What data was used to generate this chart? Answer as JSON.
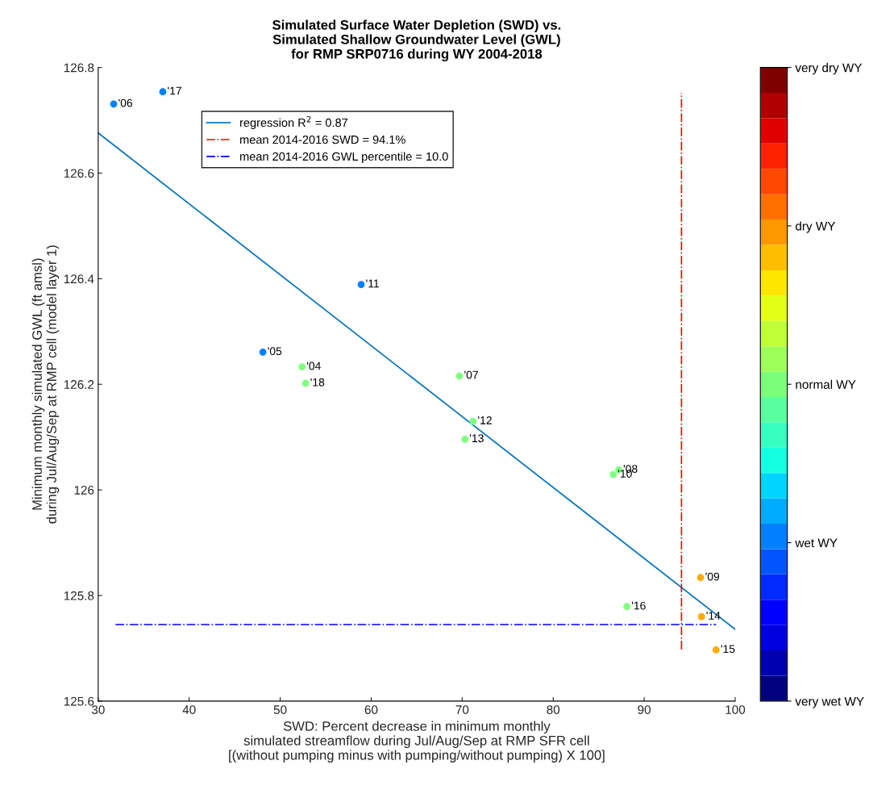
{
  "chart_data": {
    "type": "scatter",
    "title": "Simulated Surface Water Depletion (SWD) vs.\nSimulated Shallow Groundwater Level (GWL)\nfor RMP SRP0716 during WY 2004-2018",
    "xlabel": "SWD: Percent decrease in minimum monthly\nsimulated streamflow during Jul/Aug/Sep at RMP SFR cell\n[(without pumping minus with pumping/without pumping) X 100]",
    "ylabel": "Minimum monthly simulated GWL (ft amsl)\nduring Jul/Aug/Sep at RMP cell (model layer 1)",
    "x": [
      52.4,
      48.1,
      31.7,
      69.7,
      87.2,
      96.2,
      86.6,
      58.9,
      71.2,
      70.3,
      96.3,
      97.9,
      88.1,
      37.1,
      52.8
    ],
    "series": [
      {
        "type": "line",
        "name": "regression R$^{2}$ = 0.87",
        "color": "#0072bd",
        "line_style": "solid",
        "marker": "none",
        "x": [
          30,
          100
        ],
        "values": [
          126.676,
          125.736
        ]
      },
      {
        "type": "line",
        "name": "mean 2014-2016 SWD = 94.1%",
        "color": "#ff0000",
        "line_style": "dashdot",
        "marker": "none",
        "x": [
          94.1,
          94.1
        ],
        "values": [
          125.698,
          126.752
        ]
      },
      {
        "type": "line",
        "name": "mean 2014-2016 GWL percentile = 10.0",
        "color": "#0000ff",
        "line_style": "dashdot",
        "marker": "none",
        "x": [
          31.9,
          97.9
        ],
        "values": [
          125.745,
          125.745
        ]
      },
      {
        "marker": "circle",
        "values": [
          126.233,
          126.261,
          126.731,
          126.216,
          126.038,
          125.834,
          126.029,
          126.389,
          126.13,
          126.096,
          125.76,
          125.697,
          125.779,
          126.754,
          126.202
        ],
        "colors": [
          "#80ff80",
          "#0080ff",
          "#0080ff",
          "#80ff80",
          "#80ff80",
          "#ffaa00",
          "#80ff80",
          "#0080ff",
          "#80ff80",
          "#80ff80",
          "#ffaa00",
          "#ffaa00",
          "#80ff80",
          "#0080ff",
          "#80ff80"
        ]
      }
    ],
    "annotations": [
      {
        "text": "'04",
        "x": 52.4,
        "y": 126.233
      },
      {
        "text": "'05",
        "x": 48.1,
        "y": 126.261
      },
      {
        "text": "'06",
        "x": 31.7,
        "y": 126.731
      },
      {
        "text": "'07",
        "x": 69.7,
        "y": 126.216
      },
      {
        "text": "'08",
        "x": 87.2,
        "y": 126.038
      },
      {
        "text": "'09",
        "x": 96.2,
        "y": 125.834
      },
      {
        "text": "'10",
        "x": 86.6,
        "y": 126.029
      },
      {
        "text": "'11",
        "x": 58.9,
        "y": 126.389
      },
      {
        "text": "'12",
        "x": 71.2,
        "y": 126.13
      },
      {
        "text": "'13",
        "x": 70.3,
        "y": 126.096
      },
      {
        "text": "'14",
        "x": 96.3,
        "y": 125.76
      },
      {
        "text": "'15",
        "x": 97.9,
        "y": 125.697
      },
      {
        "text": "'16",
        "x": 88.1,
        "y": 125.779
      },
      {
        "text": "'17",
        "x": 37.1,
        "y": 126.754
      },
      {
        "text": "'18",
        "x": 52.8,
        "y": 126.202
      }
    ],
    "xlim": [
      30,
      100
    ],
    "xticks": [
      30,
      40,
      50,
      60,
      70,
      80,
      90,
      100
    ],
    "ylim": [
      125.6,
      126.8
    ],
    "yticks": [
      125.6,
      125.8,
      {
        "value": 126,
        "label": "126"
      },
      126.2,
      126.4,
      126.6,
      126.8
    ],
    "clim": [
      0,
      4
    ],
    "cticks": [
      {
        "value": 0,
        "label": "very wet WY"
      },
      {
        "value": 1,
        "label": "wet WY"
      },
      {
        "value": 2,
        "label": "normal WY"
      },
      {
        "value": 3,
        "label": "dry WY"
      },
      {
        "value": 4,
        "label": "very dry WY"
      }
    ],
    "legend": "top",
    "grid": false
  }
}
